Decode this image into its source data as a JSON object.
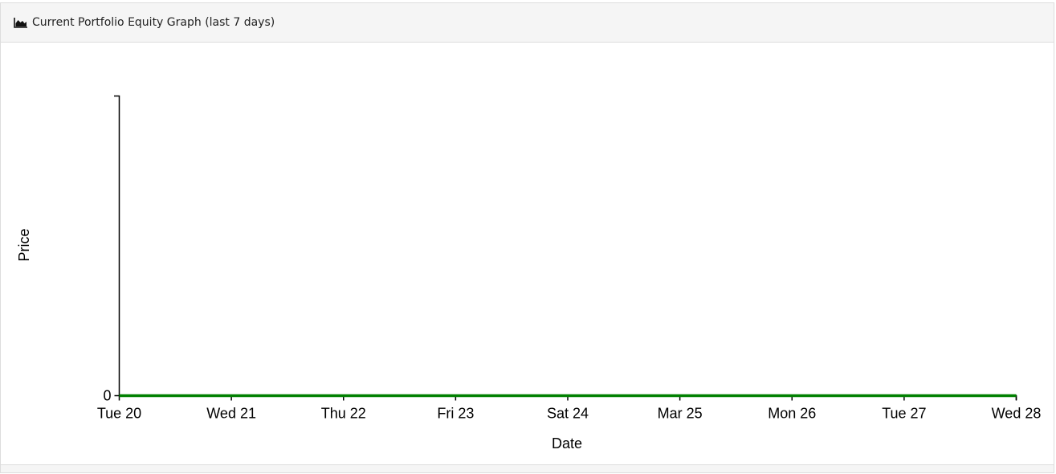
{
  "header": {
    "title": "Current Portfolio Equity Graph (last 7 days)"
  },
  "chart_data": {
    "type": "line",
    "x_label": "Date",
    "y_label": "Price",
    "categories": [
      "Tue 20",
      "Wed 21",
      "Thu 22",
      "Fri 23",
      "Sat 24",
      "Mar 25",
      "Mon 26",
      "Tue 27",
      "Wed 28"
    ],
    "series": [
      {
        "color": "#008000",
        "values": [
          0,
          0,
          0,
          0,
          0,
          0,
          0,
          0,
          0
        ]
      }
    ],
    "ylim": [
      0,
      1
    ],
    "yticks": [
      0
    ]
  }
}
